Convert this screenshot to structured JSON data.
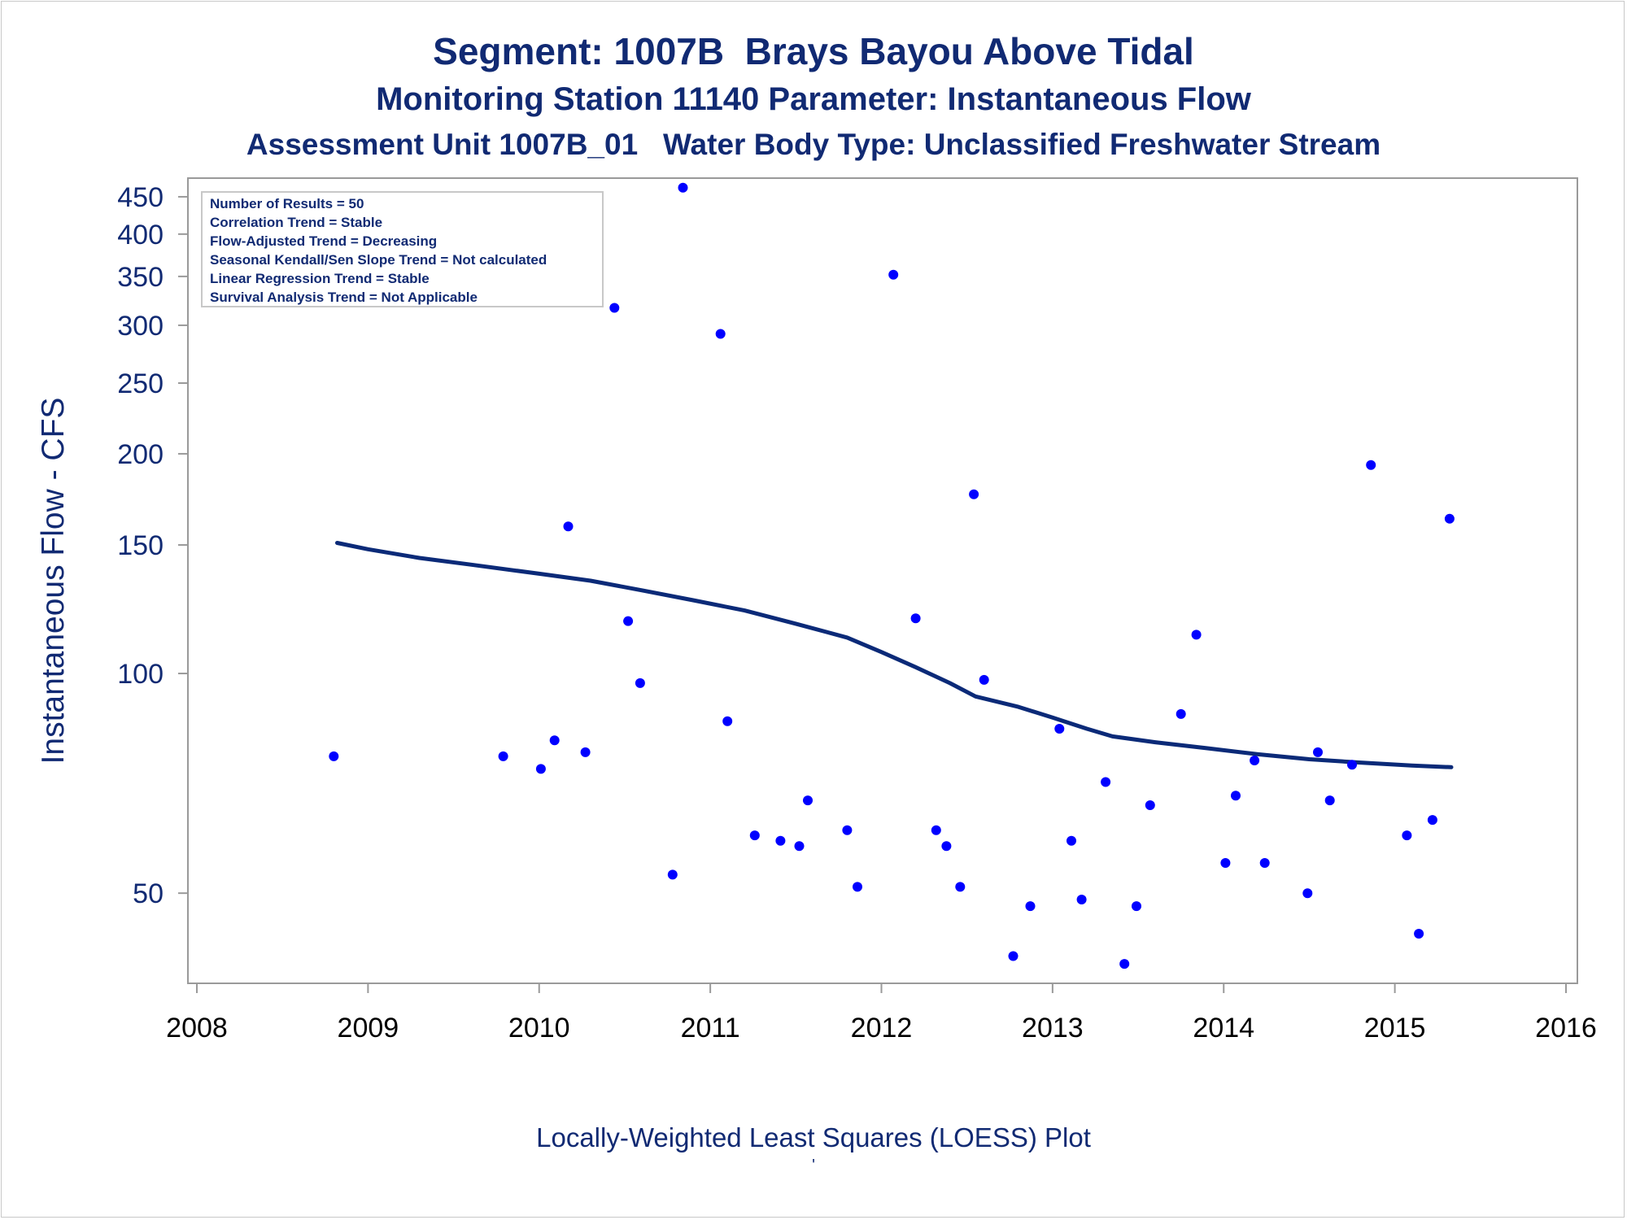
{
  "titles": {
    "title": "Segment: 1007B  Brays Bayou Above Tidal",
    "subtitle1": "Monitoring Station 11140 Parameter: Instantaneous Flow",
    "subtitle2": "Assessment Unit 1007B_01   Water Body Type: Unclassified Freshwater Stream"
  },
  "footnotes": {
    "line1": "Locally-Weighted Least Squares (LOESS) Plot",
    "line2": "'"
  },
  "colors": {
    "text": "#112a73",
    "points": "#0000ff",
    "loess_line": "#0b2a78",
    "frame": "#9a9a9a"
  },
  "chart_data": {
    "type": "scatter",
    "x_axis": {
      "ticks": [
        "2008",
        "2009",
        "2010",
        "2011",
        "2012",
        "2013",
        "2014",
        "2015",
        "2016"
      ],
      "range": [
        2008,
        2016
      ]
    },
    "y_axis": {
      "label": "Instantaneous Flow - CFS",
      "scale": "log",
      "ticks": [
        50,
        100,
        150,
        200,
        250,
        300,
        350,
        400,
        450
      ],
      "range": [
        38.5,
        470
      ]
    },
    "grid": false,
    "legend_box": {
      "placement": "top-left",
      "lines": [
        "Number of Results = 50",
        "Correlation Trend = Stable",
        "Flow-Adjusted Trend = Decreasing",
        "Seasonal Kendall/Sen Slope Trend = Not calculated",
        "Linear Regression Trend = Stable",
        "Survival Analysis Trend = Not Applicable"
      ]
    },
    "points": [
      {
        "x": 2008.8,
        "y": 77
      },
      {
        "x": 2009.79,
        "y": 77
      },
      {
        "x": 2010.01,
        "y": 74
      },
      {
        "x": 2010.09,
        "y": 81
      },
      {
        "x": 2010.17,
        "y": 159
      },
      {
        "x": 2010.27,
        "y": 78
      },
      {
        "x": 2010.44,
        "y": 317
      },
      {
        "x": 2010.52,
        "y": 118
      },
      {
        "x": 2010.59,
        "y": 97
      },
      {
        "x": 2010.78,
        "y": 53
      },
      {
        "x": 2010.84,
        "y": 463
      },
      {
        "x": 2011.06,
        "y": 292
      },
      {
        "x": 2011.1,
        "y": 86
      },
      {
        "x": 2011.26,
        "y": 60
      },
      {
        "x": 2011.41,
        "y": 59
      },
      {
        "x": 2011.52,
        "y": 58
      },
      {
        "x": 2011.57,
        "y": 67
      },
      {
        "x": 2011.8,
        "y": 61
      },
      {
        "x": 2011.86,
        "y": 51
      },
      {
        "x": 2012.07,
        "y": 352
      },
      {
        "x": 2012.2,
        "y": 119
      },
      {
        "x": 2012.32,
        "y": 61
      },
      {
        "x": 2012.38,
        "y": 58
      },
      {
        "x": 2012.46,
        "y": 51
      },
      {
        "x": 2012.54,
        "y": 176
      },
      {
        "x": 2012.6,
        "y": 98
      },
      {
        "x": 2012.77,
        "y": 41
      },
      {
        "x": 2012.87,
        "y": 48
      },
      {
        "x": 2013.04,
        "y": 84
      },
      {
        "x": 2013.11,
        "y": 59
      },
      {
        "x": 2013.17,
        "y": 49
      },
      {
        "x": 2013.31,
        "y": 71
      },
      {
        "x": 2013.42,
        "y": 40
      },
      {
        "x": 2013.49,
        "y": 48
      },
      {
        "x": 2013.57,
        "y": 66
      },
      {
        "x": 2013.75,
        "y": 88
      },
      {
        "x": 2013.84,
        "y": 113
      },
      {
        "x": 2014.01,
        "y": 55
      },
      {
        "x": 2014.07,
        "y": 68
      },
      {
        "x": 2014.18,
        "y": 76
      },
      {
        "x": 2014.24,
        "y": 55
      },
      {
        "x": 2014.49,
        "y": 50
      },
      {
        "x": 2014.55,
        "y": 78
      },
      {
        "x": 2014.62,
        "y": 67
      },
      {
        "x": 2014.75,
        "y": 75
      },
      {
        "x": 2014.86,
        "y": 193
      },
      {
        "x": 2015.07,
        "y": 60
      },
      {
        "x": 2015.14,
        "y": 44
      },
      {
        "x": 2015.22,
        "y": 63
      },
      {
        "x": 2015.32,
        "y": 163
      }
    ],
    "loess": [
      {
        "x": 2008.82,
        "y": 151
      },
      {
        "x": 2009.0,
        "y": 148
      },
      {
        "x": 2009.3,
        "y": 144
      },
      {
        "x": 2009.6,
        "y": 141
      },
      {
        "x": 2010.0,
        "y": 137
      },
      {
        "x": 2010.3,
        "y": 134
      },
      {
        "x": 2010.6,
        "y": 130
      },
      {
        "x": 2010.9,
        "y": 126
      },
      {
        "x": 2011.2,
        "y": 122
      },
      {
        "x": 2011.5,
        "y": 117
      },
      {
        "x": 2011.8,
        "y": 112
      },
      {
        "x": 2012.0,
        "y": 107
      },
      {
        "x": 2012.2,
        "y": 102
      },
      {
        "x": 2012.4,
        "y": 97
      },
      {
        "x": 2012.55,
        "y": 93
      },
      {
        "x": 2012.8,
        "y": 90
      },
      {
        "x": 2013.0,
        "y": 87
      },
      {
        "x": 2013.2,
        "y": 84
      },
      {
        "x": 2013.35,
        "y": 82
      },
      {
        "x": 2013.6,
        "y": 80.5
      },
      {
        "x": 2013.9,
        "y": 79
      },
      {
        "x": 2014.2,
        "y": 77.5
      },
      {
        "x": 2014.5,
        "y": 76.3
      },
      {
        "x": 2014.8,
        "y": 75.5
      },
      {
        "x": 2015.1,
        "y": 74.8
      },
      {
        "x": 2015.33,
        "y": 74.4
      }
    ]
  }
}
